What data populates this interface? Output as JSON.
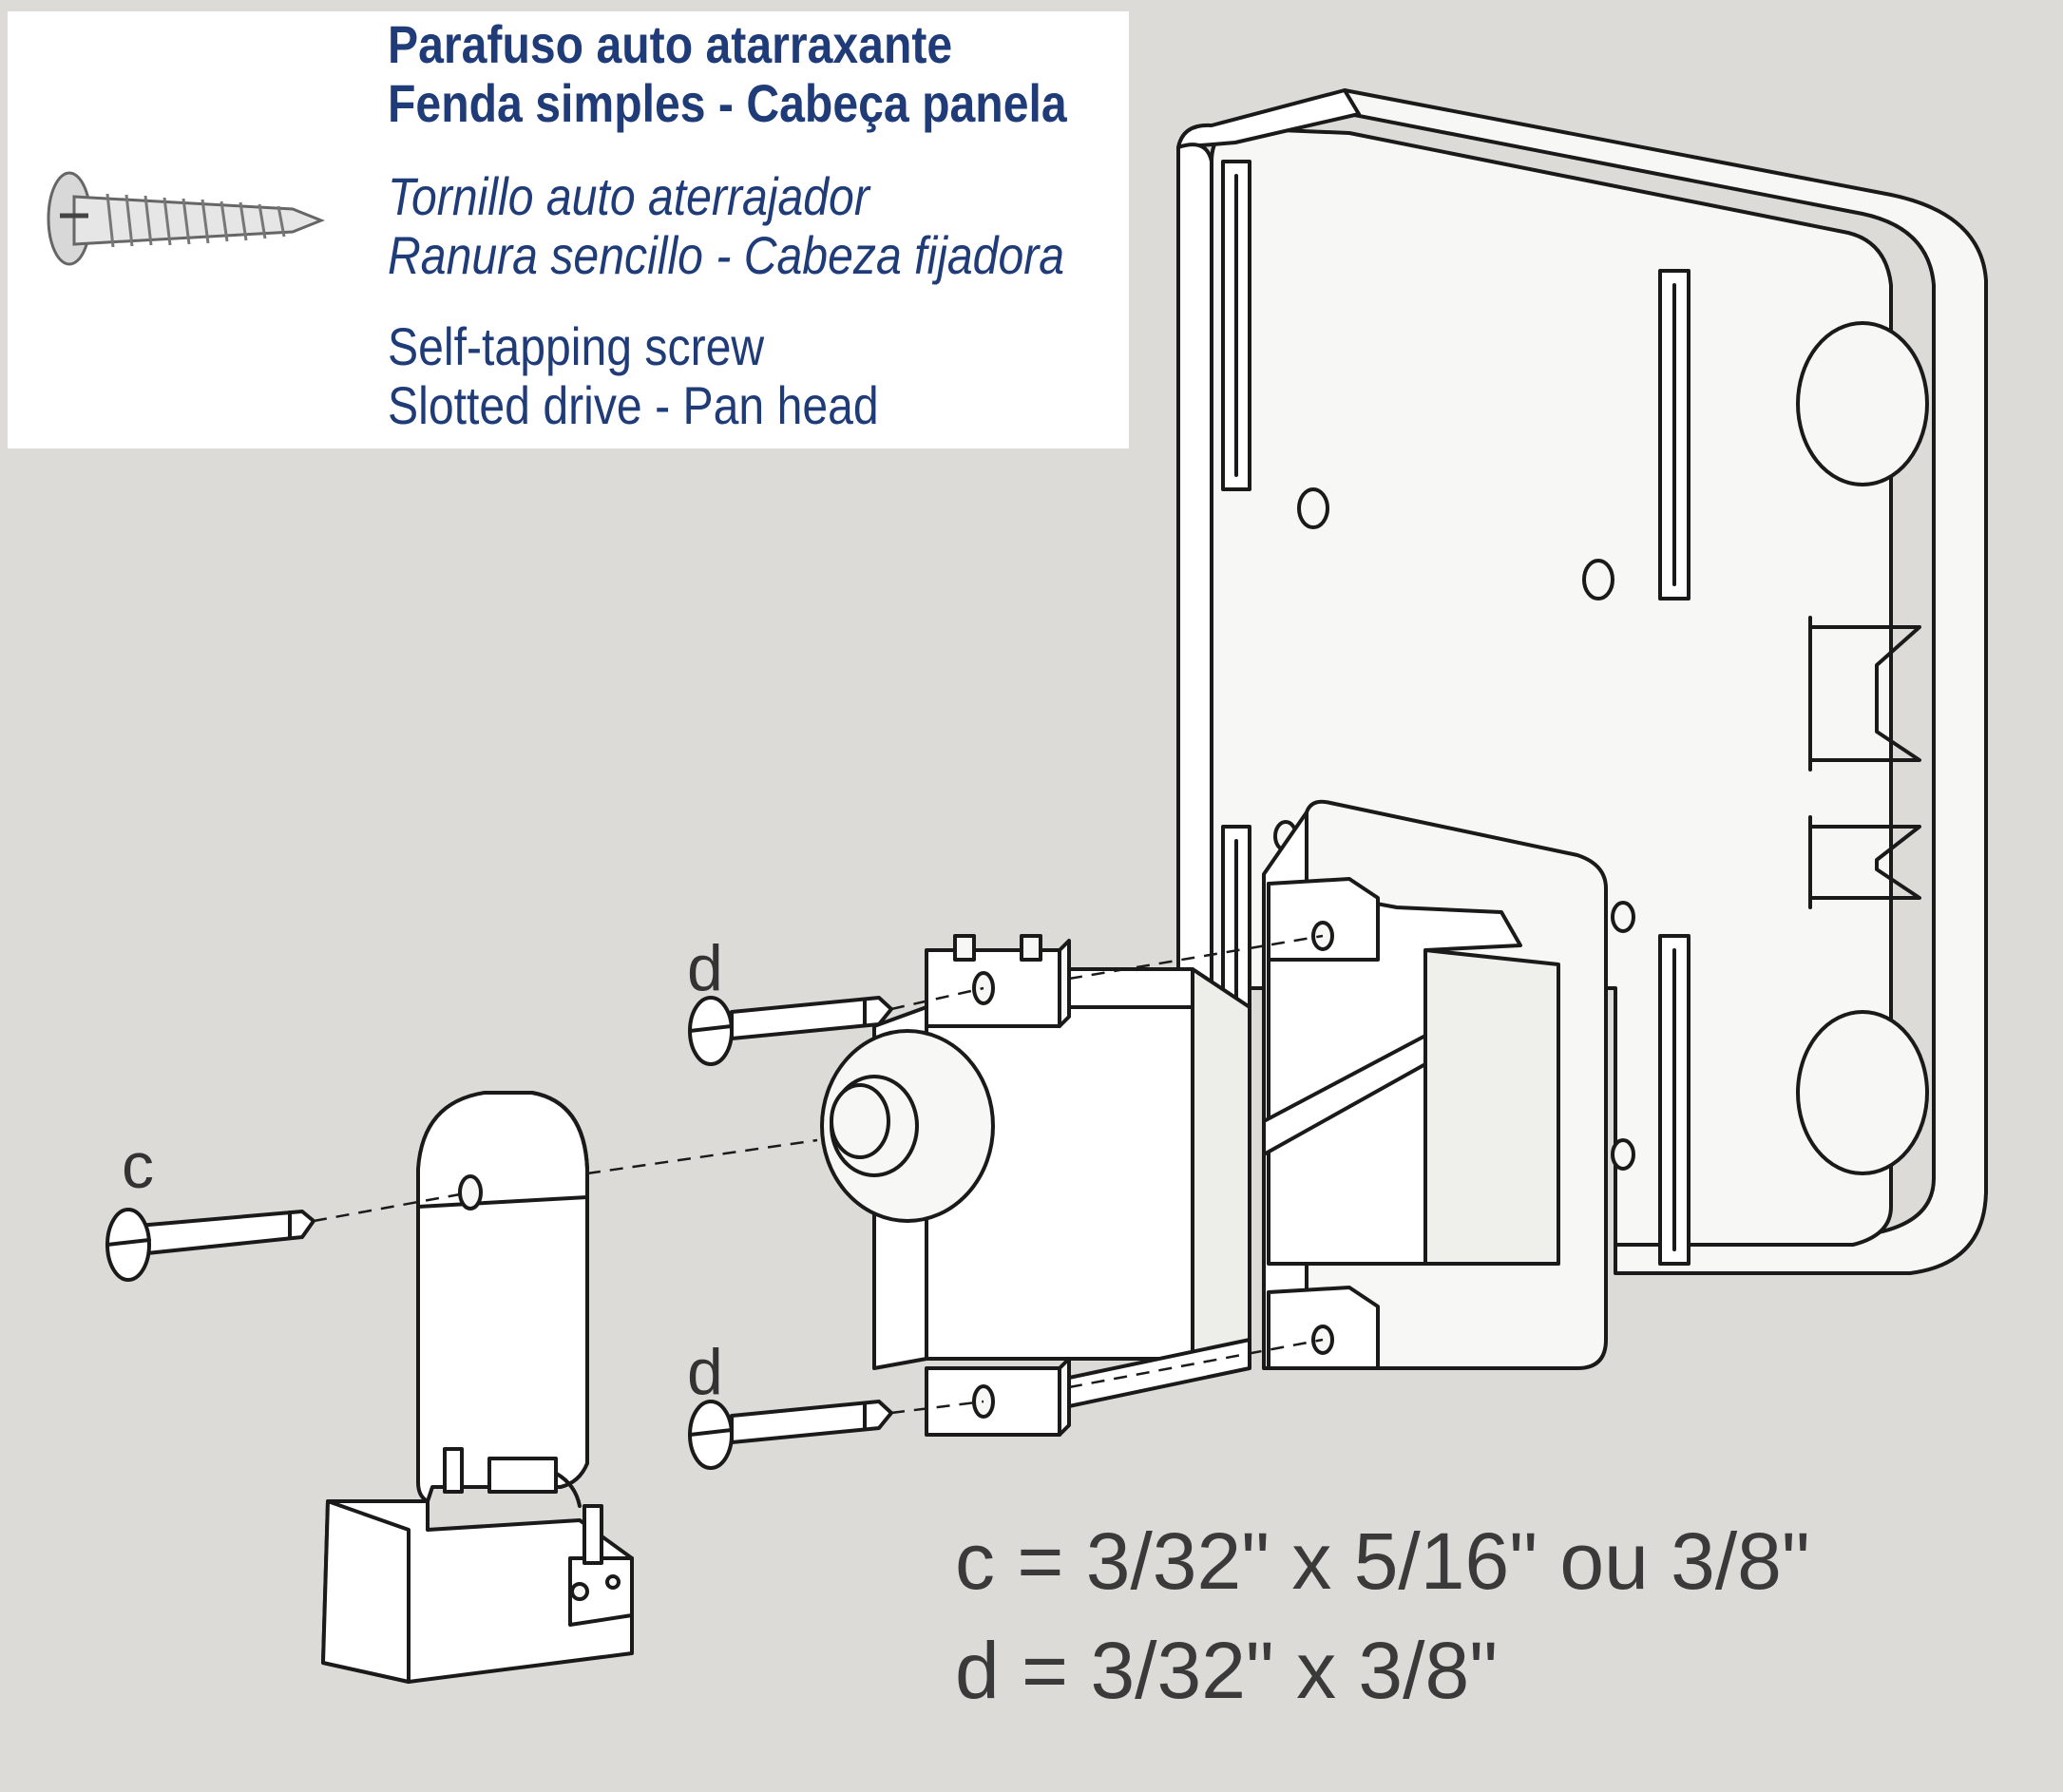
{
  "info_box": {
    "pt_line1": "Parafuso auto atarraxante",
    "pt_line2": "Fenda simples - Cabeça panela",
    "es_line1": "Tornillo auto aterrajador",
    "es_line2": "Ranura sencillo - Cabeza fijadora",
    "en_line1": "Self-tapping screw",
    "en_line2": "Slotted drive - Pan head",
    "text_color": "#1f3c78"
  },
  "callouts": {
    "c": "c",
    "d_top": "d",
    "d_bottom": "d"
  },
  "specs": {
    "c_line": "c = 3/32\" x 5/16\" ou 3/8\"",
    "d_line": "d = 3/32\" x 3/8\""
  },
  "colors": {
    "background": "#dcdbd8",
    "line": "#1a1a1a",
    "part_fill": "#f7f7f5"
  }
}
